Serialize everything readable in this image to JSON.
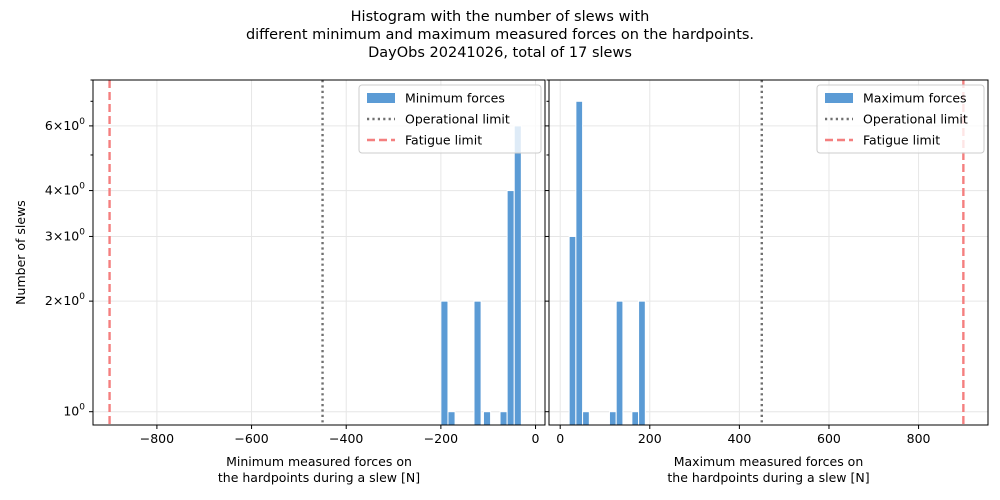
{
  "figure": {
    "title_lines": [
      "Histogram with the number of slews with",
      "different minimum and maximum measured forces on the hardpoints.",
      "DayObs 20241026, total of 17 slews"
    ]
  },
  "colors": {
    "bar": "#5b9bd5",
    "bar_edge": "#ffffff",
    "operational_line": "#707070",
    "fatigue_line": "#f47f7f",
    "grid": "#e6e6e6"
  },
  "chart_data": [
    {
      "type": "bar",
      "subtype": "histogram",
      "xlabel": "Minimum measured forces on\nthe hardpoints during a slew [N]",
      "ylabel": "Number of slews",
      "xlim": [
        -935,
        20
      ],
      "ylim": [
        0.92,
        8.0
      ],
      "yscale": "log",
      "x_ticks": [
        -800,
        -600,
        -400,
        -200,
        0
      ],
      "x_tick_labels": [
        "−800",
        "−600",
        "−400",
        "−200",
        "0"
      ],
      "y_ticks": [
        {
          "value": 1,
          "label": "10",
          "exp": "0"
        },
        {
          "value": 2,
          "label": "2×10",
          "exp": "0"
        },
        {
          "value": 3,
          "label": "3×10",
          "exp": "0"
        },
        {
          "value": 4,
          "label": "4×10",
          "exp": "0"
        },
        {
          "value": 6,
          "label": "6×10",
          "exp": "0"
        }
      ],
      "y_minor_ticks": [
        5,
        7,
        8
      ],
      "grid": true,
      "legend_position": "top-right",
      "bins": [
        {
          "x0": -200,
          "x1": -185,
          "count": 2
        },
        {
          "x0": -185,
          "x1": -170,
          "count": 1
        },
        {
          "x0": -130,
          "x1": -115,
          "count": 2
        },
        {
          "x0": -110,
          "x1": -95,
          "count": 1
        },
        {
          "x0": -75,
          "x1": -60,
          "count": 1
        },
        {
          "x0": -60,
          "x1": -45,
          "count": 4
        },
        {
          "x0": -45,
          "x1": -30,
          "count": 6
        }
      ],
      "vlines": [
        {
          "name": "Operational limit",
          "x": -450,
          "style": "dotted"
        },
        {
          "name": "Fatigue limit",
          "x": -900,
          "style": "dashed"
        }
      ],
      "legend": [
        "Minimum forces",
        "Operational limit",
        "Fatigue limit"
      ],
      "show_ylabel": true,
      "show_ytick_labels": true
    },
    {
      "type": "bar",
      "subtype": "histogram",
      "xlabel": "Maximum measured forces on\nthe hardpoints during a slew [N]",
      "ylabel": "",
      "xlim": [
        -25,
        955
      ],
      "ylim": [
        0.92,
        8.0
      ],
      "yscale": "log",
      "x_ticks": [
        0,
        200,
        400,
        600,
        800
      ],
      "x_tick_labels": [
        "0",
        "200",
        "400",
        "600",
        "800"
      ],
      "y_ticks": [
        {
          "value": 1,
          "label": "",
          "exp": ""
        },
        {
          "value": 2,
          "label": "",
          "exp": ""
        },
        {
          "value": 3,
          "label": "",
          "exp": ""
        },
        {
          "value": 4,
          "label": "",
          "exp": ""
        },
        {
          "value": 6,
          "label": "",
          "exp": ""
        }
      ],
      "y_minor_ticks": [
        5,
        7,
        8
      ],
      "grid": true,
      "legend_position": "top-right",
      "bins": [
        {
          "x0": 20,
          "x1": 35,
          "count": 3
        },
        {
          "x0": 35,
          "x1": 50,
          "count": 7
        },
        {
          "x0": 50,
          "x1": 65,
          "count": 1
        },
        {
          "x0": 110,
          "x1": 125,
          "count": 1
        },
        {
          "x0": 125,
          "x1": 140,
          "count": 2
        },
        {
          "x0": 160,
          "x1": 175,
          "count": 1
        },
        {
          "x0": 175,
          "x1": 190,
          "count": 2
        }
      ],
      "vlines": [
        {
          "name": "Operational limit",
          "x": 450,
          "style": "dotted"
        },
        {
          "name": "Fatigue limit",
          "x": 900,
          "style": "dashed"
        }
      ],
      "legend": [
        "Maximum forces",
        "Operational limit",
        "Fatigue limit"
      ],
      "show_ylabel": false,
      "show_ytick_labels": false
    }
  ]
}
